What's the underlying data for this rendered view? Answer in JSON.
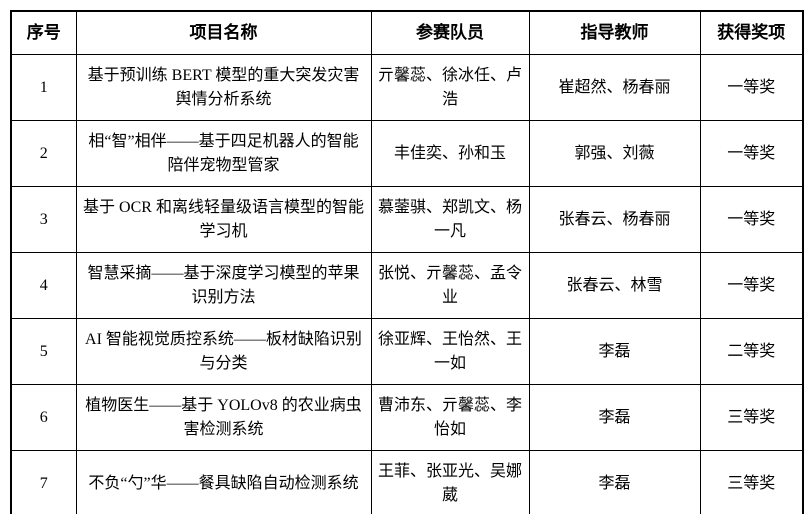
{
  "page": {
    "background_color": "#ffffff",
    "text_color": "#000000",
    "border_color": "#000000"
  },
  "table": {
    "headers": {
      "no": "序号",
      "project": "项目名称",
      "members": "参赛队员",
      "teachers": "指导教师",
      "award": "获得奖项"
    },
    "rows": [
      {
        "no": "1",
        "project": "基于预训练 BERT 模型的重大突发灾害舆情分析系统",
        "members": "亓馨蕊、徐冰任、卢浩",
        "teachers": "崔超然、杨春丽",
        "award": "一等奖"
      },
      {
        "no": "2",
        "project": "相“智”相伴——基于四足机器人的智能陪伴宠物型管家",
        "members": "丰佳奕、孙和玉",
        "teachers": "郭强、刘薇",
        "award": "一等奖"
      },
      {
        "no": "3",
        "project": "基于 OCR 和离线轻量级语言模型的智能学习机",
        "members": "慕蓥骐、郑凯文、杨一凡",
        "teachers": "张春云、杨春丽",
        "award": "一等奖"
      },
      {
        "no": "4",
        "project": "智慧采摘——基于深度学习模型的苹果识别方法",
        "members": "张悦、亓馨蕊、孟令业",
        "teachers": "张春云、林雪",
        "award": "一等奖"
      },
      {
        "no": "5",
        "project": "AI 智能视觉质控系统——板材缺陷识别与分类",
        "members": "徐亚辉、王怡然、王一如",
        "teachers": "李磊",
        "award": "二等奖"
      },
      {
        "no": "6",
        "project": "植物医生——基于 YOLOv8 的农业病虫害检测系统",
        "members": "曹沛东、亓馨蕊、李怡如",
        "teachers": "李磊",
        "award": "三等奖"
      },
      {
        "no": "7",
        "project": "不负“勺”华——餐具缺陷自动检测系统",
        "members": "王菲、张亚光、吴娜葳",
        "teachers": "李磊",
        "award": "三等奖"
      }
    ]
  }
}
